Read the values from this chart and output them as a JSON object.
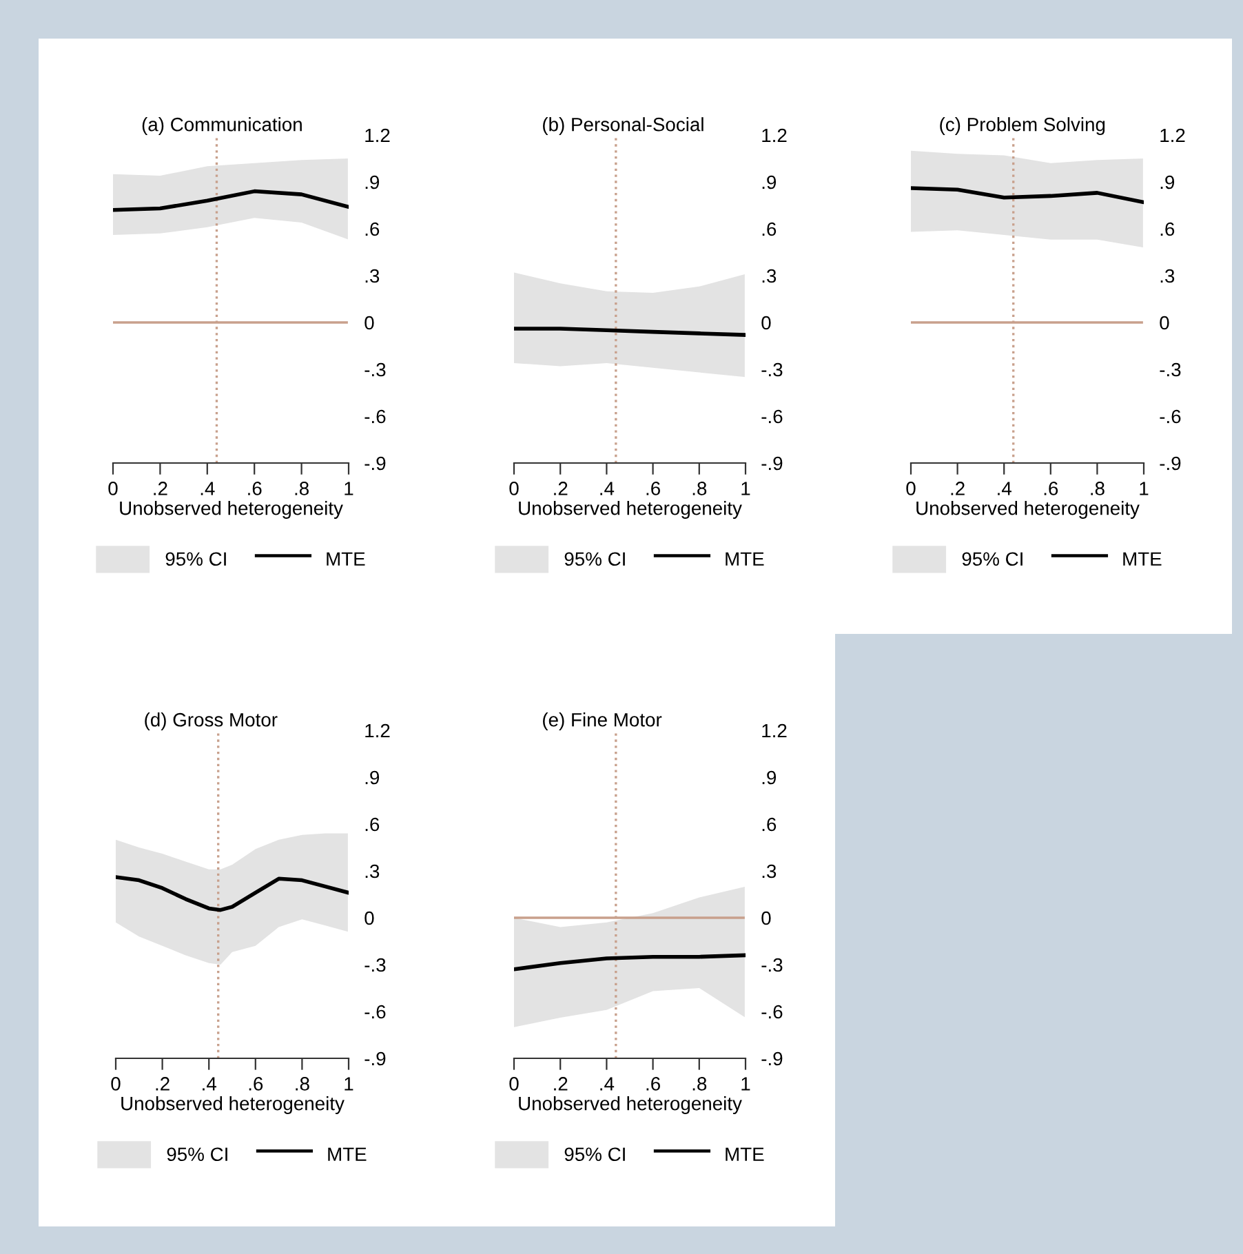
{
  "chart_data": [
    {
      "type": "line",
      "title": "(a) Communication",
      "xlabel": "Unobserved heterogeneity",
      "xlim": [
        0,
        1
      ],
      "xticks": [
        0,
        {
          "value": 0.2,
          "label": ".2"
        },
        {
          "value": 0.4,
          "label": ".4"
        },
        {
          "value": 0.6,
          "label": ".6"
        },
        {
          "value": 0.8,
          "label": ".8"
        },
        1
      ],
      "ylim": [
        -0.9,
        1.2
      ],
      "yticks": [
        1.2,
        {
          "value": 0.9,
          "label": ".9"
        },
        {
          "value": 0.6,
          "label": ".6"
        },
        {
          "value": 0.3,
          "label": ".3"
        },
        0,
        {
          "value": -0.3,
          "label": "-.3"
        },
        {
          "value": -0.6,
          "label": "-.6"
        },
        {
          "value": -0.9,
          "label": "-.9"
        }
      ],
      "grid": false,
      "legend": "bottom",
      "annotations": [
        "95% CI"
      ],
      "ref_lines": [
        {
          "axis": "y",
          "value": 0,
          "color": "#c8a08c",
          "line_style": "solid"
        },
        {
          "axis": "x",
          "value": 0.44,
          "color": "#c8a08c",
          "line_style": "dotted"
        }
      ],
      "series": [
        {
          "name": "MTE",
          "color": "#000000",
          "x": [
            0,
            0.2,
            0.4,
            0.6,
            0.8,
            1
          ],
          "values": [
            0.72,
            0.73,
            0.78,
            0.84,
            0.82,
            0.74
          ],
          "lower": [
            0.56,
            0.57,
            0.61,
            0.67,
            0.64,
            0.53
          ],
          "upper": [
            0.95,
            0.94,
            1.0,
            1.02,
            1.04,
            1.05
          ]
        }
      ]
    },
    {
      "type": "line",
      "title": "(b) Personal-Social",
      "xlabel": "Unobserved heterogeneity",
      "xlim": [
        0,
        1
      ],
      "xticks": [
        0,
        {
          "value": 0.2,
          "label": ".2"
        },
        {
          "value": 0.4,
          "label": ".4"
        },
        {
          "value": 0.6,
          "label": ".6"
        },
        {
          "value": 0.8,
          "label": ".8"
        },
        1
      ],
      "ylim": [
        -0.9,
        1.2
      ],
      "yticks": [
        1.2,
        {
          "value": 0.9,
          "label": ".9"
        },
        {
          "value": 0.6,
          "label": ".6"
        },
        {
          "value": 0.3,
          "label": ".3"
        },
        0,
        {
          "value": -0.3,
          "label": "-.3"
        },
        {
          "value": -0.6,
          "label": "-.6"
        },
        {
          "value": -0.9,
          "label": "-.9"
        }
      ],
      "grid": false,
      "legend": "bottom",
      "annotations": [
        "95% CI"
      ],
      "ref_lines": [
        {
          "axis": "x",
          "value": 0.44,
          "color": "#c8a08c",
          "line_style": "dotted"
        }
      ],
      "series": [
        {
          "name": "MTE",
          "color": "#000000",
          "x": [
            0,
            0.2,
            0.4,
            0.6,
            0.8,
            1
          ],
          "values": [
            -0.04,
            -0.04,
            -0.05,
            -0.06,
            -0.07,
            -0.08
          ],
          "lower": [
            -0.26,
            -0.28,
            -0.26,
            -0.29,
            -0.32,
            -0.35
          ],
          "upper": [
            0.32,
            0.25,
            0.2,
            0.19,
            0.23,
            0.31
          ]
        }
      ]
    },
    {
      "type": "line",
      "title": "(c) Problem Solving",
      "xlabel": "Unobserved heterogeneity",
      "xlim": [
        0,
        1
      ],
      "xticks": [
        0,
        {
          "value": 0.2,
          "label": ".2"
        },
        {
          "value": 0.4,
          "label": ".4"
        },
        {
          "value": 0.6,
          "label": ".6"
        },
        {
          "value": 0.8,
          "label": ".8"
        },
        1
      ],
      "ylim": [
        -0.9,
        1.2
      ],
      "yticks": [
        1.2,
        {
          "value": 0.9,
          "label": ".9"
        },
        {
          "value": 0.6,
          "label": ".6"
        },
        {
          "value": 0.3,
          "label": ".3"
        },
        0,
        {
          "value": -0.3,
          "label": "-.3"
        },
        {
          "value": -0.6,
          "label": "-.6"
        },
        {
          "value": -0.9,
          "label": "-.9"
        }
      ],
      "grid": false,
      "legend": "bottom",
      "annotations": [
        "95% CI"
      ],
      "ref_lines": [
        {
          "axis": "y",
          "value": 0,
          "color": "#c8a08c",
          "line_style": "solid"
        },
        {
          "axis": "x",
          "value": 0.44,
          "color": "#c8a08c",
          "line_style": "dotted"
        }
      ],
      "series": [
        {
          "name": "MTE",
          "color": "#000000",
          "x": [
            0,
            0.2,
            0.4,
            0.6,
            0.8,
            1
          ],
          "values": [
            0.86,
            0.85,
            0.8,
            0.81,
            0.83,
            0.77
          ],
          "lower": [
            0.58,
            0.59,
            0.56,
            0.53,
            0.53,
            0.48
          ],
          "upper": [
            1.1,
            1.08,
            1.07,
            1.02,
            1.04,
            1.05
          ]
        }
      ]
    },
    {
      "type": "line",
      "title": "(d) Gross Motor",
      "xlabel": "Unobserved heterogeneity",
      "xlim": [
        0,
        1
      ],
      "xticks": [
        0,
        {
          "value": 0.2,
          "label": ".2"
        },
        {
          "value": 0.4,
          "label": ".4"
        },
        {
          "value": 0.6,
          "label": ".6"
        },
        {
          "value": 0.8,
          "label": ".8"
        },
        1
      ],
      "ylim": [
        -0.9,
        1.2
      ],
      "yticks": [
        1.2,
        {
          "value": 0.9,
          "label": ".9"
        },
        {
          "value": 0.6,
          "label": ".6"
        },
        {
          "value": 0.3,
          "label": ".3"
        },
        0,
        {
          "value": -0.3,
          "label": "-.3"
        },
        {
          "value": -0.6,
          "label": "-.6"
        },
        {
          "value": -0.9,
          "label": "-.9"
        }
      ],
      "grid": false,
      "legend": "bottom",
      "annotations": [
        "95% CI"
      ],
      "ref_lines": [
        {
          "axis": "x",
          "value": 0.44,
          "color": "#c8a08c",
          "line_style": "dotted"
        }
      ],
      "series": [
        {
          "name": "MTE",
          "color": "#000000",
          "x": [
            0,
            0.1,
            0.2,
            0.3,
            0.4,
            0.45,
            0.5,
            0.6,
            0.7,
            0.8,
            0.9,
            1
          ],
          "values": [
            0.26,
            0.24,
            0.19,
            0.12,
            0.06,
            0.05,
            0.07,
            0.16,
            0.25,
            0.24,
            0.2,
            0.16
          ],
          "lower": [
            -0.03,
            -0.12,
            -0.18,
            -0.24,
            -0.29,
            -0.3,
            -0.22,
            -0.18,
            -0.06,
            -0.01,
            -0.05,
            -0.09
          ],
          "upper": [
            0.5,
            0.45,
            0.41,
            0.36,
            0.31,
            0.31,
            0.34,
            0.44,
            0.5,
            0.53,
            0.54,
            0.54
          ]
        }
      ]
    },
    {
      "type": "line",
      "title": "(e) Fine Motor",
      "xlabel": "Unobserved heterogeneity",
      "xlim": [
        0,
        1
      ],
      "xticks": [
        0,
        {
          "value": 0.2,
          "label": ".2"
        },
        {
          "value": 0.4,
          "label": ".4"
        },
        {
          "value": 0.6,
          "label": ".6"
        },
        {
          "value": 0.8,
          "label": ".8"
        },
        1
      ],
      "ylim": [
        -0.9,
        1.2
      ],
      "yticks": [
        1.2,
        {
          "value": 0.9,
          "label": ".9"
        },
        {
          "value": 0.6,
          "label": ".6"
        },
        {
          "value": 0.3,
          "label": ".3"
        },
        0,
        {
          "value": -0.3,
          "label": "-.3"
        },
        {
          "value": -0.6,
          "label": "-.6"
        },
        {
          "value": -0.9,
          "label": "-.9"
        }
      ],
      "grid": false,
      "legend": "bottom",
      "annotations": [
        "95% CI"
      ],
      "ref_lines": [
        {
          "axis": "y",
          "value": 0,
          "color": "#c8a08c",
          "line_style": "solid"
        },
        {
          "axis": "x",
          "value": 0.44,
          "color": "#c8a08c",
          "line_style": "dotted"
        }
      ],
      "series": [
        {
          "name": "MTE",
          "color": "#000000",
          "x": [
            0,
            0.2,
            0.4,
            0.6,
            0.8,
            1
          ],
          "values": [
            -0.33,
            -0.29,
            -0.26,
            -0.25,
            -0.25,
            -0.24
          ],
          "lower": [
            -0.7,
            -0.64,
            -0.59,
            -0.47,
            -0.45,
            -0.64
          ],
          "upper": [
            0,
            -0.06,
            -0.03,
            0.03,
            0.13,
            0.2
          ]
        }
      ]
    }
  ]
}
